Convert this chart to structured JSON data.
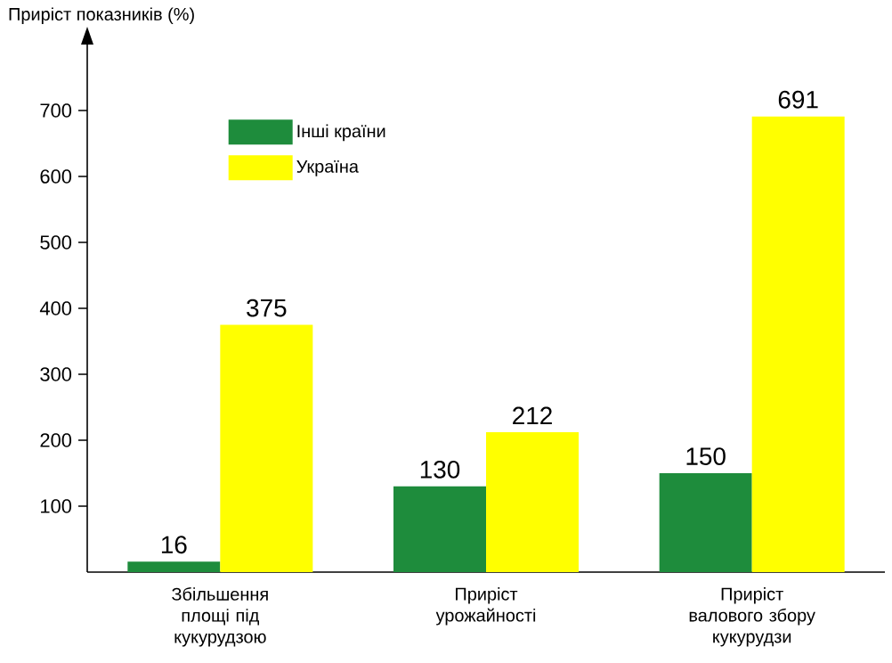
{
  "chart_data": {
    "type": "bar",
    "ylabel": "Приріст показників (%)",
    "categories": [
      "Збільшення площі під кукурудзою",
      "Приріст урожайності",
      "Приріст валового збору кукурудзи"
    ],
    "series": [
      {
        "name": "Інші країни",
        "color": "#1e8c3c",
        "values": [
          16,
          130,
          150
        ]
      },
      {
        "name": "Україна",
        "color": "#ffff00",
        "values": [
          375,
          212,
          691
        ]
      }
    ],
    "ylim": [
      0,
      800
    ],
    "yticks": [
      100,
      200,
      300,
      400,
      500,
      600,
      700
    ],
    "data_labels": true,
    "legend": "top left",
    "grid": false
  }
}
